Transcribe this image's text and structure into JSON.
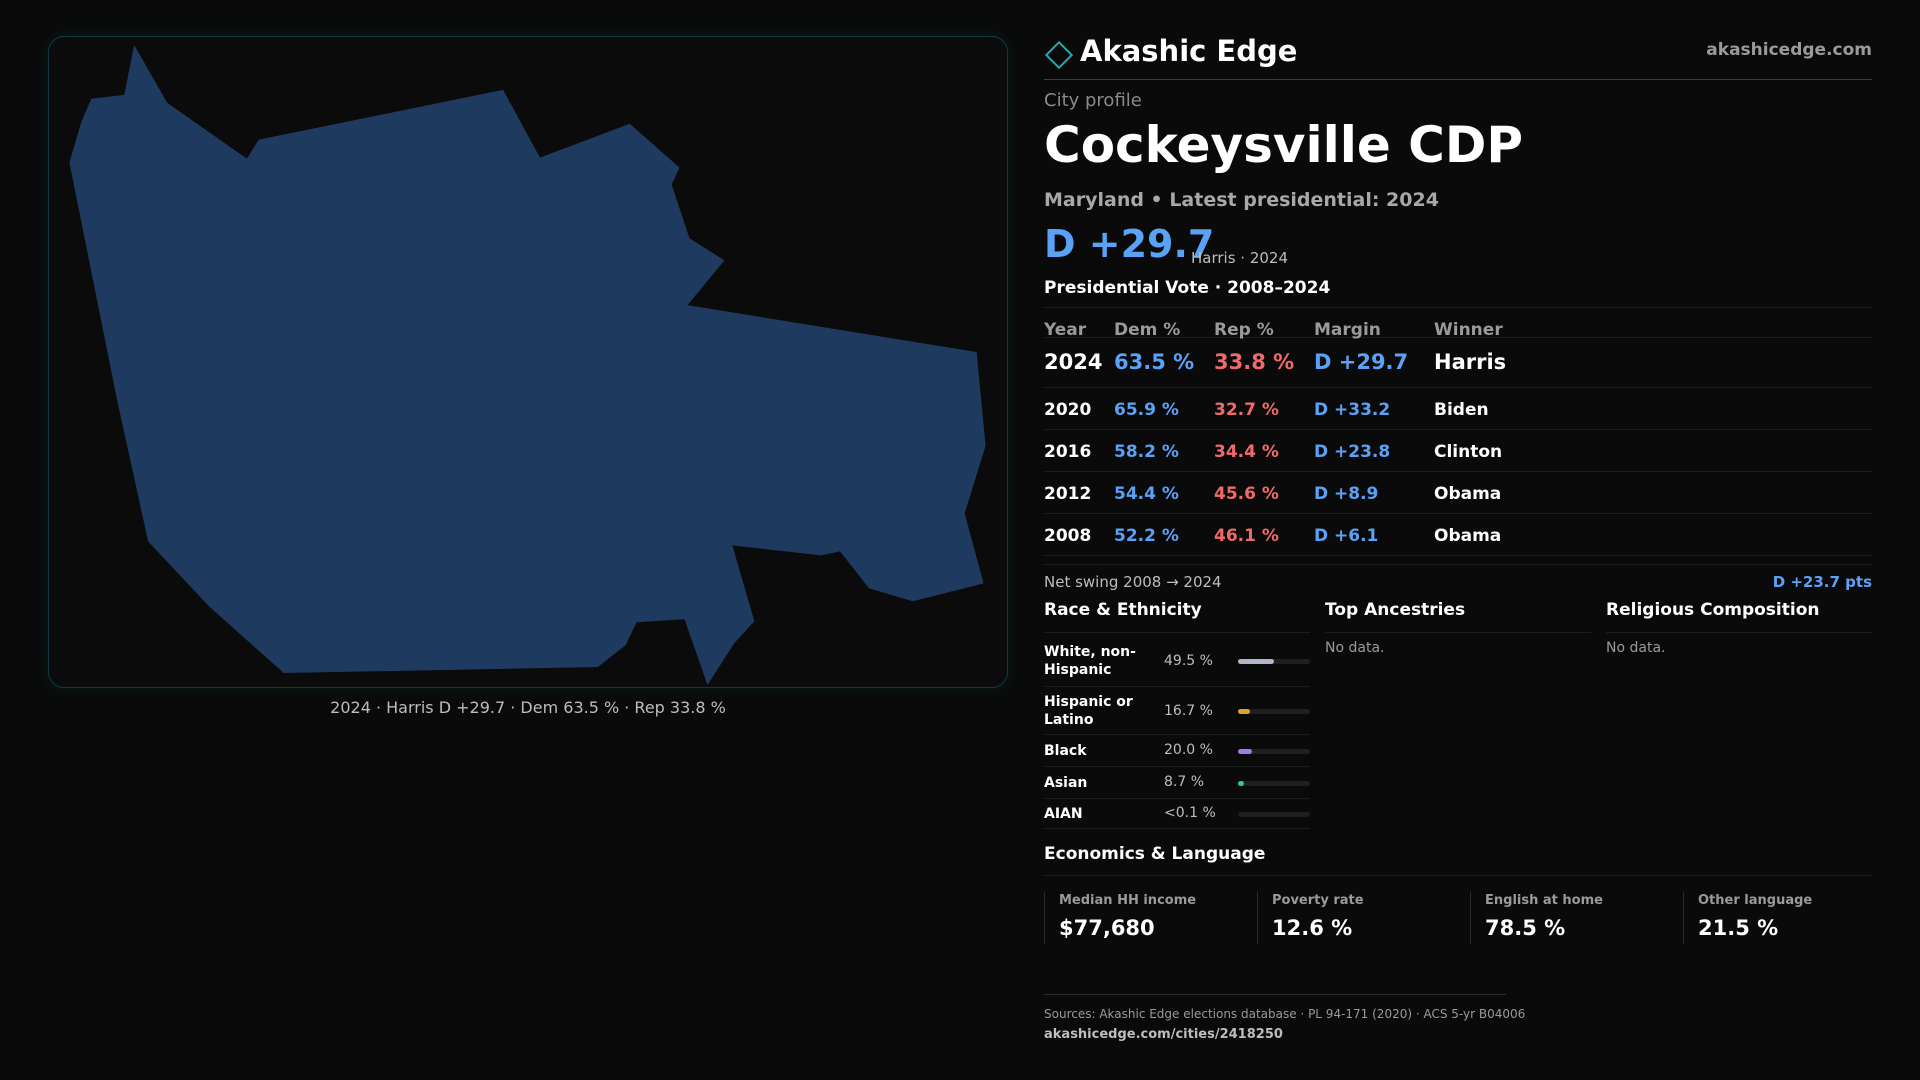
{
  "map": {
    "caption": "2024 · Harris D +29.7 · Dem 63.5 % · Rep 33.8 %",
    "fill_color": "#1f3a5f"
  },
  "brand": {
    "name": "Akashic Edge",
    "url": "akashicedge.com",
    "icon": "diamond-logo-icon"
  },
  "profile": {
    "kicker": "City profile",
    "title": "Cockeysville CDP",
    "subtitle": "Maryland • Latest presidential: 2024",
    "margin": "D +29.7",
    "margin_note": "Harris · 2024"
  },
  "vote": {
    "title": "Presidential Vote · 2008–2024",
    "headers": {
      "year": "Year",
      "dem": "Dem %",
      "rep": "Rep %",
      "margin": "Margin",
      "winner": "Winner"
    },
    "rows": [
      {
        "year": "2024",
        "dem": "63.5 %",
        "rep": "33.8 %",
        "margin": "D +29.7",
        "winner": "Harris"
      },
      {
        "year": "2020",
        "dem": "65.9 %",
        "rep": "32.7 %",
        "margin": "D +33.2",
        "winner": "Biden"
      },
      {
        "year": "2016",
        "dem": "58.2 %",
        "rep": "34.4 %",
        "margin": "D +23.8",
        "winner": "Clinton"
      },
      {
        "year": "2012",
        "dem": "54.4 %",
        "rep": "45.6 %",
        "margin": "D +8.9",
        "winner": "Obama"
      },
      {
        "year": "2008",
        "dem": "52.2 %",
        "rep": "46.1 %",
        "margin": "D +6.1",
        "winner": "Obama"
      }
    ],
    "swing_label": "Net swing 2008 → 2024",
    "swing_value": "D +23.7 pts"
  },
  "race": {
    "title": "Race & Ethnicity",
    "rows": [
      {
        "label": "White, non-Hispanic",
        "value": "49.5 %",
        "share": 0.495,
        "color": "#b0b6c6"
      },
      {
        "label": "Hispanic or Latino",
        "value": "16.7 %",
        "share": 0.167,
        "color": "#e0a030"
      },
      {
        "label": "Black",
        "value": "20.0 %",
        "share": 0.2,
        "color": "#a07be6"
      },
      {
        "label": "Asian",
        "value": "8.7 %",
        "share": 0.087,
        "color": "#2fc79a"
      },
      {
        "label": "AIAN",
        "value": "<0.1 %",
        "share": 0.0,
        "color": "#888888"
      }
    ]
  },
  "ancestries": {
    "title": "Top Ancestries",
    "empty": "No data."
  },
  "religion": {
    "title": "Religious Composition",
    "empty": "No data."
  },
  "economics": {
    "title": "Economics & Language",
    "cells": [
      {
        "label": "Median HH income",
        "value": "$77,680"
      },
      {
        "label": "Poverty rate",
        "value": "12.6 %"
      },
      {
        "label": "English at home",
        "value": "78.5 %"
      },
      {
        "label": "Other language",
        "value": "21.5 %"
      }
    ]
  },
  "footer": {
    "sources": "Sources: Akashic Edge elections database · PL 94-171 (2020) · ACS 5-yr B04006",
    "url": "akashicedge.com/cities/2418250"
  }
}
